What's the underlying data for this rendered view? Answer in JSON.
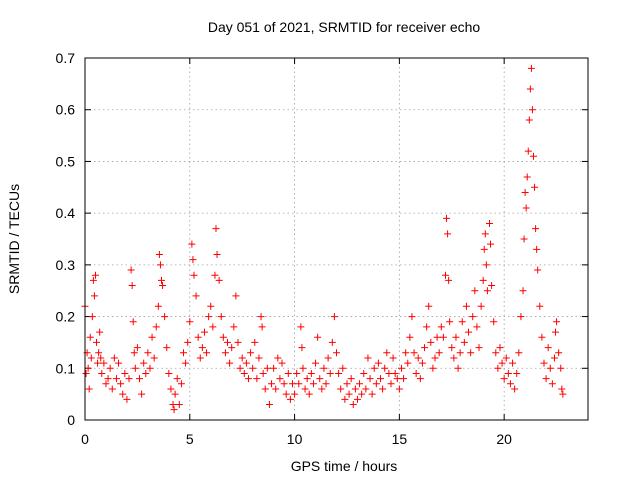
{
  "chart_data": {
    "type": "scatter",
    "title": "Day 051 of 2021, SRMTID for receiver echo",
    "xlabel": "GPS time / hours",
    "ylabel": "SRMTID / TECUs",
    "xlim": [
      0,
      24
    ],
    "ylim": [
      0,
      0.7
    ],
    "xticks": [
      0,
      5,
      10,
      15,
      20
    ],
    "yticks": [
      0,
      0.1,
      0.2,
      0.3,
      0.4,
      0.5,
      0.6,
      0.7
    ],
    "xtick_labels": [
      "0",
      "5",
      "10",
      "15",
      "20"
    ],
    "ytick_labels": [
      "0",
      "0.1",
      "0.2",
      "0.3",
      "0.4",
      "0.5",
      "0.6",
      "0.7"
    ],
    "grid": true,
    "marker": "plus",
    "marker_color": "#ff0000",
    "series": [
      {
        "name": "SRMTID",
        "points": [
          [
            0.0,
            0.22
          ],
          [
            0.05,
            0.09
          ],
          [
            0.1,
            0.13
          ],
          [
            0.15,
            0.1
          ],
          [
            0.2,
            0.06
          ],
          [
            0.25,
            0.16
          ],
          [
            0.3,
            0.12
          ],
          [
            0.35,
            0.2
          ],
          [
            0.4,
            0.27
          ],
          [
            0.45,
            0.24
          ],
          [
            0.5,
            0.28
          ],
          [
            0.55,
            0.15
          ],
          [
            0.6,
            0.11
          ],
          [
            0.65,
            0.13
          ],
          [
            0.7,
            0.17
          ],
          [
            0.75,
            0.12
          ],
          [
            0.8,
            0.09
          ],
          [
            0.9,
            0.11
          ],
          [
            1.0,
            0.07
          ],
          [
            1.1,
            0.08
          ],
          [
            1.2,
            0.1
          ],
          [
            1.3,
            0.06
          ],
          [
            1.4,
            0.12
          ],
          [
            1.5,
            0.08
          ],
          [
            1.6,
            0.11
          ],
          [
            1.7,
            0.07
          ],
          [
            1.8,
            0.05
          ],
          [
            1.9,
            0.09
          ],
          [
            2.0,
            0.04
          ],
          [
            2.1,
            0.08
          ],
          [
            2.2,
            0.29
          ],
          [
            2.25,
            0.26
          ],
          [
            2.3,
            0.19
          ],
          [
            2.35,
            0.13
          ],
          [
            2.4,
            0.1
          ],
          [
            2.5,
            0.14
          ],
          [
            2.6,
            0.08
          ],
          [
            2.7,
            0.05
          ],
          [
            2.8,
            0.11
          ],
          [
            2.9,
            0.09
          ],
          [
            3.0,
            0.13
          ],
          [
            3.1,
            0.1
          ],
          [
            3.2,
            0.16
          ],
          [
            3.3,
            0.12
          ],
          [
            3.4,
            0.18
          ],
          [
            3.5,
            0.22
          ],
          [
            3.55,
            0.32
          ],
          [
            3.6,
            0.3
          ],
          [
            3.65,
            0.27
          ],
          [
            3.7,
            0.26
          ],
          [
            3.8,
            0.2
          ],
          [
            3.9,
            0.14
          ],
          [
            4.0,
            0.09
          ],
          [
            4.1,
            0.06
          ],
          [
            4.2,
            0.03
          ],
          [
            4.25,
            0.02
          ],
          [
            4.3,
            0.05
          ],
          [
            4.4,
            0.08
          ],
          [
            4.5,
            0.03
          ],
          [
            4.6,
            0.07
          ],
          [
            4.7,
            0.13
          ],
          [
            4.8,
            0.11
          ],
          [
            4.9,
            0.15
          ],
          [
            5.0,
            0.19
          ],
          [
            5.1,
            0.34
          ],
          [
            5.15,
            0.31
          ],
          [
            5.2,
            0.28
          ],
          [
            5.3,
            0.24
          ],
          [
            5.4,
            0.16
          ],
          [
            5.5,
            0.12
          ],
          [
            5.6,
            0.14
          ],
          [
            5.7,
            0.17
          ],
          [
            5.8,
            0.13
          ],
          [
            5.9,
            0.2
          ],
          [
            6.0,
            0.22
          ],
          [
            6.1,
            0.18
          ],
          [
            6.2,
            0.28
          ],
          [
            6.25,
            0.37
          ],
          [
            6.3,
            0.32
          ],
          [
            6.4,
            0.27
          ],
          [
            6.5,
            0.2
          ],
          [
            6.6,
            0.16
          ],
          [
            6.7,
            0.13
          ],
          [
            6.8,
            0.15
          ],
          [
            6.9,
            0.11
          ],
          [
            7.0,
            0.14
          ],
          [
            7.1,
            0.18
          ],
          [
            7.2,
            0.24
          ],
          [
            7.3,
            0.15
          ],
          [
            7.4,
            0.1
          ],
          [
            7.5,
            0.12
          ],
          [
            7.6,
            0.09
          ],
          [
            7.7,
            0.11
          ],
          [
            7.8,
            0.08
          ],
          [
            7.9,
            0.13
          ],
          [
            8.0,
            0.1
          ],
          [
            8.1,
            0.15
          ],
          [
            8.2,
            0.08
          ],
          [
            8.3,
            0.12
          ],
          [
            8.4,
            0.2
          ],
          [
            8.45,
            0.18
          ],
          [
            8.5,
            0.09
          ],
          [
            8.6,
            0.06
          ],
          [
            8.7,
            0.1
          ],
          [
            8.8,
            0.03
          ],
          [
            8.9,
            0.07
          ],
          [
            9.0,
            0.1
          ],
          [
            9.1,
            0.06
          ],
          [
            9.2,
            0.12
          ],
          [
            9.3,
            0.08
          ],
          [
            9.4,
            0.11
          ],
          [
            9.5,
            0.07
          ],
          [
            9.6,
            0.05
          ],
          [
            9.7,
            0.09
          ],
          [
            9.8,
            0.04
          ],
          [
            9.9,
            0.07
          ],
          [
            10.0,
            0.05
          ],
          [
            10.1,
            0.09
          ],
          [
            10.2,
            0.07
          ],
          [
            10.3,
            0.18
          ],
          [
            10.35,
            0.14
          ],
          [
            10.4,
            0.1
          ],
          [
            10.5,
            0.06
          ],
          [
            10.6,
            0.08
          ],
          [
            10.7,
            0.05
          ],
          [
            10.8,
            0.09
          ],
          [
            10.9,
            0.07
          ],
          [
            11.0,
            0.11
          ],
          [
            11.1,
            0.16
          ],
          [
            11.2,
            0.08
          ],
          [
            11.3,
            0.06
          ],
          [
            11.4,
            0.1
          ],
          [
            11.5,
            0.07
          ],
          [
            11.6,
            0.12
          ],
          [
            11.7,
            0.09
          ],
          [
            11.8,
            0.15
          ],
          [
            11.9,
            0.2
          ],
          [
            12.0,
            0.13
          ],
          [
            12.1,
            0.09
          ],
          [
            12.2,
            0.06
          ],
          [
            12.3,
            0.1
          ],
          [
            12.4,
            0.04
          ],
          [
            12.5,
            0.07
          ],
          [
            12.6,
            0.05
          ],
          [
            12.7,
            0.08
          ],
          [
            12.8,
            0.03
          ],
          [
            12.9,
            0.06
          ],
          [
            13.0,
            0.04
          ],
          [
            13.1,
            0.07
          ],
          [
            13.2,
            0.05
          ],
          [
            13.3,
            0.09
          ],
          [
            13.4,
            0.06
          ],
          [
            13.5,
            0.12
          ],
          [
            13.6,
            0.08
          ],
          [
            13.7,
            0.05
          ],
          [
            13.8,
            0.1
          ],
          [
            13.9,
            0.07
          ],
          [
            14.0,
            0.11
          ],
          [
            14.1,
            0.08
          ],
          [
            14.2,
            0.06
          ],
          [
            14.3,
            0.1
          ],
          [
            14.4,
            0.13
          ],
          [
            14.5,
            0.09
          ],
          [
            14.6,
            0.07
          ],
          [
            14.7,
            0.12
          ],
          [
            14.8,
            0.09
          ],
          [
            14.9,
            0.08
          ],
          [
            15.0,
            0.06
          ],
          [
            15.1,
            0.1
          ],
          [
            15.2,
            0.08
          ],
          [
            15.3,
            0.13
          ],
          [
            15.4,
            0.11
          ],
          [
            15.5,
            0.16
          ],
          [
            15.6,
            0.2
          ],
          [
            15.7,
            0.13
          ],
          [
            15.8,
            0.09
          ],
          [
            15.9,
            0.12
          ],
          [
            16.0,
            0.08
          ],
          [
            16.1,
            0.11
          ],
          [
            16.2,
            0.14
          ],
          [
            16.3,
            0.18
          ],
          [
            16.4,
            0.22
          ],
          [
            16.5,
            0.15
          ],
          [
            16.6,
            0.1
          ],
          [
            16.7,
            0.12
          ],
          [
            16.8,
            0.16
          ],
          [
            16.9,
            0.13
          ],
          [
            17.0,
            0.18
          ],
          [
            17.1,
            0.16
          ],
          [
            17.2,
            0.28
          ],
          [
            17.25,
            0.39
          ],
          [
            17.3,
            0.36
          ],
          [
            17.35,
            0.27
          ],
          [
            17.4,
            0.19
          ],
          [
            17.5,
            0.14
          ],
          [
            17.6,
            0.12
          ],
          [
            17.7,
            0.16
          ],
          [
            17.8,
            0.1
          ],
          [
            17.9,
            0.13
          ],
          [
            18.0,
            0.19
          ],
          [
            18.1,
            0.15
          ],
          [
            18.2,
            0.22
          ],
          [
            18.3,
            0.17
          ],
          [
            18.4,
            0.13
          ],
          [
            18.5,
            0.2
          ],
          [
            18.6,
            0.25
          ],
          [
            18.7,
            0.18
          ],
          [
            18.8,
            0.14
          ],
          [
            18.9,
            0.22
          ],
          [
            19.0,
            0.27
          ],
          [
            19.05,
            0.33
          ],
          [
            19.1,
            0.36
          ],
          [
            19.15,
            0.3
          ],
          [
            19.2,
            0.25
          ],
          [
            19.3,
            0.38
          ],
          [
            19.35,
            0.34
          ],
          [
            19.4,
            0.26
          ],
          [
            19.5,
            0.19
          ],
          [
            19.6,
            0.13
          ],
          [
            19.7,
            0.1
          ],
          [
            19.8,
            0.14
          ],
          [
            19.9,
            0.11
          ],
          [
            20.0,
            0.08
          ],
          [
            20.1,
            0.12
          ],
          [
            20.2,
            0.09
          ],
          [
            20.3,
            0.07
          ],
          [
            20.4,
            0.11
          ],
          [
            20.5,
            0.06
          ],
          [
            20.6,
            0.09
          ],
          [
            20.7,
            0.13
          ],
          [
            20.8,
            0.2
          ],
          [
            20.9,
            0.25
          ],
          [
            20.95,
            0.35
          ],
          [
            21.0,
            0.44
          ],
          [
            21.05,
            0.41
          ],
          [
            21.1,
            0.47
          ],
          [
            21.15,
            0.52
          ],
          [
            21.2,
            0.58
          ],
          [
            21.25,
            0.64
          ],
          [
            21.3,
            0.68
          ],
          [
            21.35,
            0.6
          ],
          [
            21.4,
            0.51
          ],
          [
            21.45,
            0.45
          ],
          [
            21.5,
            0.37
          ],
          [
            21.55,
            0.33
          ],
          [
            21.6,
            0.29
          ],
          [
            21.7,
            0.22
          ],
          [
            21.8,
            0.16
          ],
          [
            21.9,
            0.11
          ],
          [
            22.0,
            0.08
          ],
          [
            22.1,
            0.14
          ],
          [
            22.2,
            0.1
          ],
          [
            22.3,
            0.07
          ],
          [
            22.4,
            0.12
          ],
          [
            22.45,
            0.17
          ],
          [
            22.5,
            0.19
          ],
          [
            22.6,
            0.13
          ],
          [
            22.7,
            0.1
          ],
          [
            22.75,
            0.06
          ],
          [
            22.8,
            0.05
          ]
        ]
      }
    ]
  }
}
